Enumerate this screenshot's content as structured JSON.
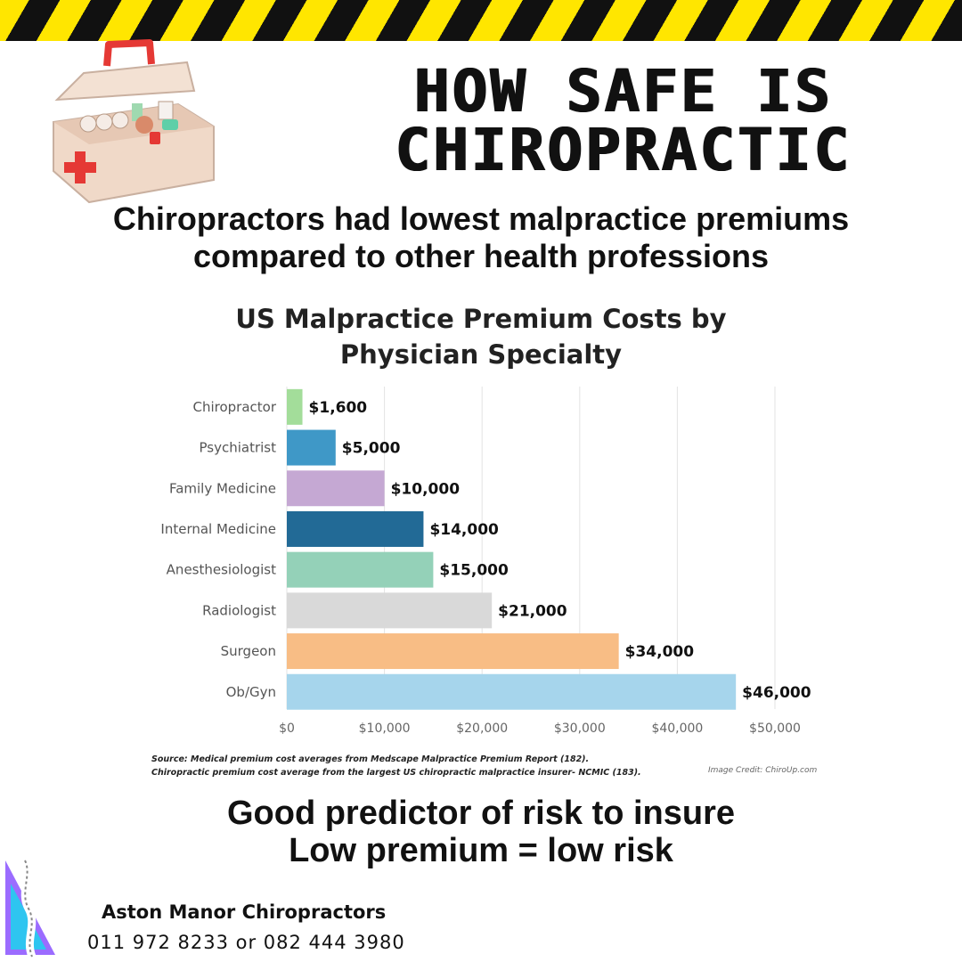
{
  "header": {
    "title_line1": "HOW SAFE IS",
    "title_line2": "CHIROPRACTIC",
    "subtitle_line1": "Chiropractors had lowest malpractice premiums",
    "subtitle_line2": "compared to other health professions"
  },
  "icons": {
    "first_aid": "first-aid-kit-icon",
    "spine": "spine-logo-icon"
  },
  "colors": {
    "hazard_black": "#111111",
    "hazard_yellow": "#ffe600",
    "kit_body": "#f0d9c8",
    "kit_red": "#e53935"
  },
  "chart_data": {
    "type": "bar",
    "orientation": "horizontal",
    "title": "US Malpractice Premium Costs by Physician Specialty",
    "title_line1": "US Malpractice Premium Costs by",
    "title_line2": "Physician Specialty",
    "categories": [
      "Chiropractor",
      "Psychiatrist",
      "Family Medicine",
      "Internal Medicine",
      "Anesthesiologist",
      "Radiologist",
      "Surgeon",
      "Ob/Gyn"
    ],
    "values": [
      1600,
      5000,
      10000,
      14000,
      15000,
      21000,
      34000,
      46000
    ],
    "value_labels": [
      "$1,600",
      "$5,000",
      "$10,000",
      "$14,000",
      "$15,000",
      "$21,000",
      "$34,000",
      "$46,000"
    ],
    "bar_colors": [
      "#a3dd9a",
      "#3f98c7",
      "#c5a8d3",
      "#226a96",
      "#94d1b8",
      "#d9d9d9",
      "#f8bd85",
      "#a6d5ec"
    ],
    "xlim": [
      0,
      50000
    ],
    "xticks": [
      0,
      10000,
      20000,
      30000,
      40000,
      50000
    ],
    "xtick_labels": [
      "$0",
      "$10,000",
      "$20,000",
      "$30,000",
      "$40,000",
      "$50,000"
    ],
    "grid": true,
    "xlabel": "",
    "ylabel": ""
  },
  "source": {
    "line1": "Source: Medical premium cost averages from Medscape Malpractice Premium Report (182).",
    "line2": "Chiropractic premium cost average from the largest US chiropractic malpractice insurer- NCMIC (183).",
    "credit": "Image Credit: ChiroUp.com"
  },
  "footer": {
    "line1": "Good predictor of risk to insure",
    "line2": "Low premium = low risk",
    "brand": "Aston Manor Chiropractors",
    "phone": "011 972 8233 or 082 444 3980"
  }
}
